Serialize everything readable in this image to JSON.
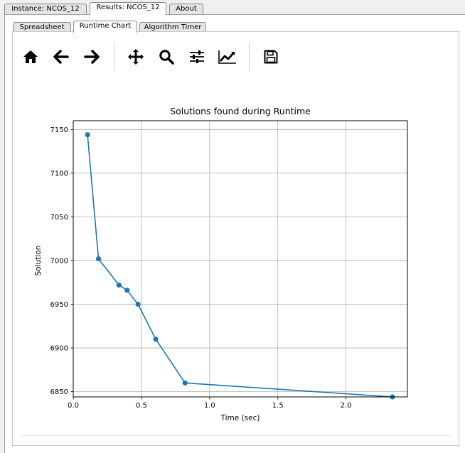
{
  "tabs": [
    {
      "label": "Instance: NCOS_12",
      "active": false
    },
    {
      "label": "Results: NCOS_12",
      "active": true
    },
    {
      "label": "About",
      "active": false
    }
  ],
  "subtabs": [
    {
      "label": "Spreadsheet",
      "active": false
    },
    {
      "label": "Runtime Chart",
      "active": true
    },
    {
      "label": "Algorithm Timer",
      "active": false
    }
  ],
  "toolbar": {
    "icons": [
      "home-icon",
      "back-arrow-icon",
      "forward-arrow-icon",
      "pan-icon",
      "zoom-icon",
      "subplots-icon",
      "edit-axis-icon",
      "save-icon"
    ]
  },
  "chart_data": {
    "type": "line",
    "title": "Solutions found during Runtime",
    "xlabel": "Time (sec)",
    "ylabel": "Solution",
    "x": [
      0.105,
      0.185,
      0.335,
      0.395,
      0.475,
      0.605,
      0.82,
      2.34
    ],
    "y": [
      7144,
      7002,
      6972,
      6966,
      6950,
      6910,
      6860,
      6844
    ],
    "xlim": [
      0.0,
      2.45
    ],
    "ylim": [
      6844,
      7160
    ],
    "xticks": [
      "0.0",
      "0.5",
      "1.0",
      "1.5",
      "2.0"
    ],
    "xtick_values": [
      0.0,
      0.5,
      1.0,
      1.5,
      2.0
    ],
    "yticks": [
      "6850",
      "6900",
      "6950",
      "7000",
      "7050",
      "7100",
      "7150"
    ],
    "ytick_values": [
      6850,
      6900,
      6950,
      7000,
      7050,
      7100,
      7150
    ],
    "grid": true,
    "color": "#1f77b4"
  }
}
